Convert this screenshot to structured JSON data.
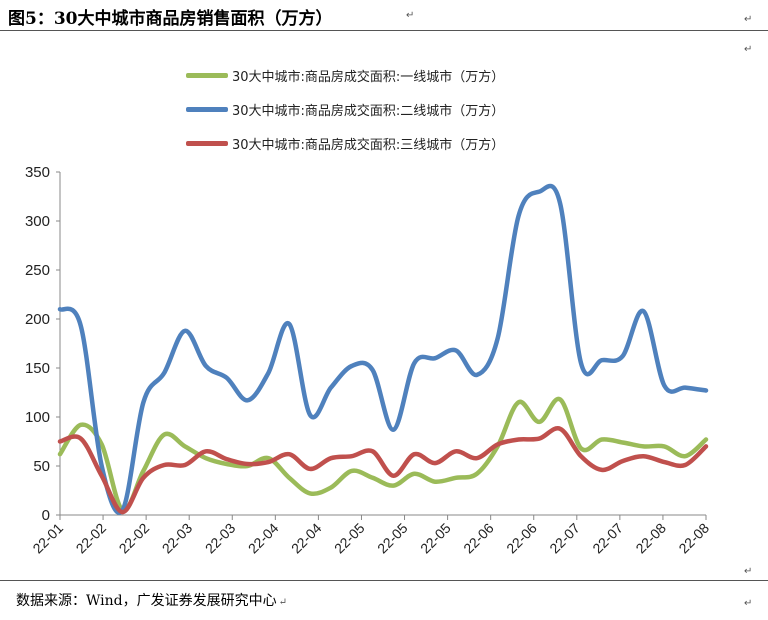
{
  "title": "图5：30大中城市商品房销售面积（万方）",
  "source": "数据来源：Wind，广发证券发展研究中心",
  "paragraph_mark": "↵",
  "legend": [
    {
      "label": "30大中城市:商品房成交面积:一线城市（万方）",
      "color": "#9bbb59"
    },
    {
      "label": "30大中城市:商品房成交面积:二线城市（万方）",
      "color": "#4f81bd"
    },
    {
      "label": "30大中城市:商品房成交面积:三线城市（万方）",
      "color": "#c0504d"
    }
  ],
  "chart_data": {
    "type": "line",
    "title": "",
    "xlabel": "",
    "ylabel": "",
    "ylim": [
      0,
      350
    ],
    "yticks": [
      0,
      50,
      100,
      150,
      200,
      250,
      300,
      350
    ],
    "xtick_labels": [
      "22-01",
      "22-02",
      "22-02",
      "22-03",
      "22-03",
      "22-04",
      "22-04",
      "22-05",
      "22-05",
      "22-05",
      "22-06",
      "22-06",
      "22-07",
      "22-07",
      "22-08",
      "22-08"
    ],
    "grid": false,
    "legend_position": "top",
    "series": [
      {
        "name": "30大中城市:商品房成交面积:一线城市（万方）",
        "color": "#9bbb59",
        "values": [
          62,
          92,
          72,
          5,
          45,
          82,
          70,
          58,
          52,
          50,
          58,
          38,
          22,
          28,
          45,
          38,
          30,
          42,
          34,
          38,
          42,
          70,
          115,
          95,
          118,
          68,
          77,
          74,
          70,
          70,
          60,
          77
        ]
      },
      {
        "name": "30大中城市:商品房成交面积:二线城市（万方）",
        "color": "#4f81bd",
        "values": [
          210,
          193,
          50,
          5,
          115,
          145,
          188,
          152,
          140,
          117,
          145,
          195,
          102,
          130,
          152,
          148,
          87,
          155,
          160,
          168,
          143,
          180,
          305,
          330,
          318,
          155,
          158,
          162,
          208,
          132,
          130,
          127
        ]
      },
      {
        "name": "30大中城市:商品房成交面积:三线城市（万方）",
        "color": "#c0504d",
        "values": [
          75,
          78,
          40,
          3,
          38,
          51,
          51,
          65,
          57,
          52,
          54,
          62,
          47,
          58,
          60,
          65,
          40,
          62,
          53,
          65,
          58,
          72,
          77,
          78,
          88,
          60,
          46,
          55,
          60,
          54,
          51,
          70
        ]
      }
    ]
  }
}
